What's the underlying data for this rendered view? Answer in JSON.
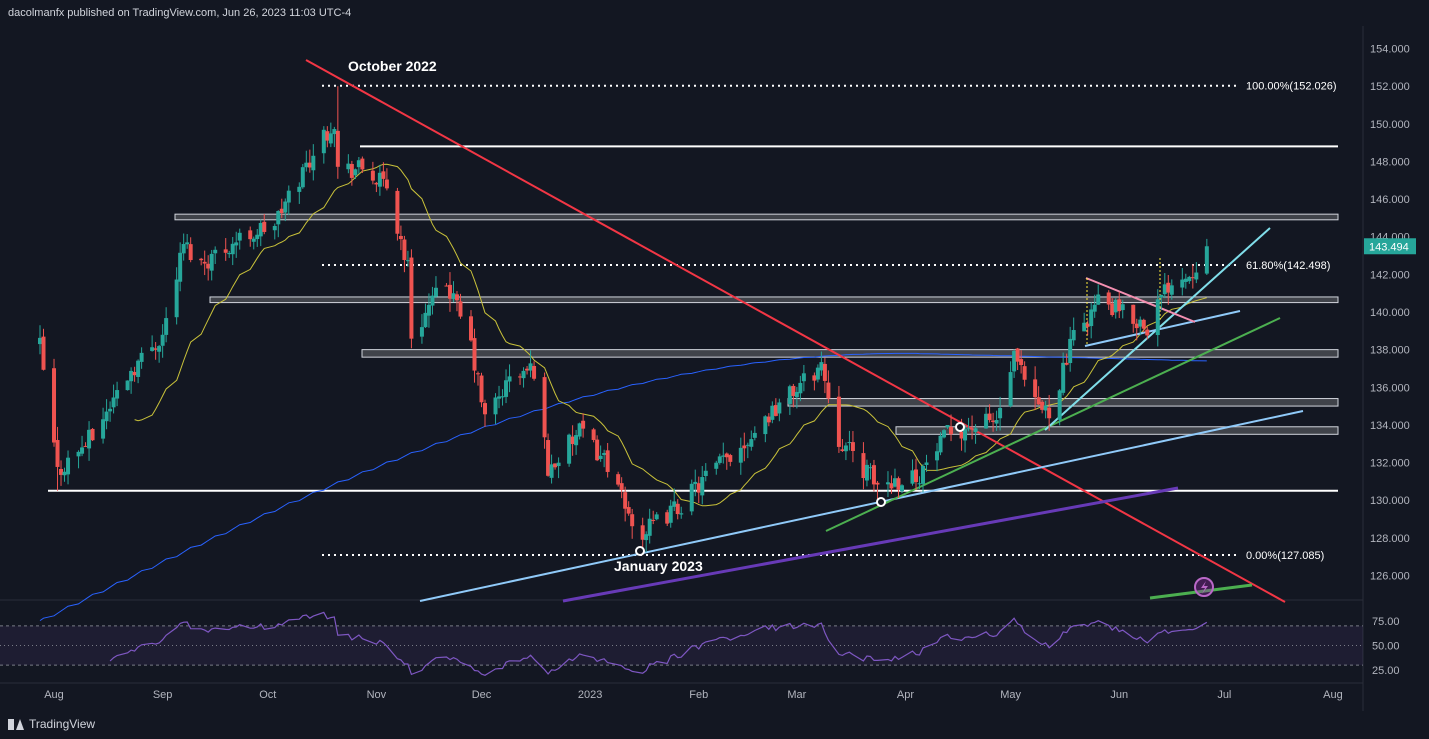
{
  "header": {
    "publisher_text": "dacolmanfx published on TradingView.com, Jun 26, 2023 11:03 UTC-4"
  },
  "footer": {
    "brand": "TradingView"
  },
  "colors": {
    "background": "#131722",
    "up": "#26a69a",
    "down": "#ef5350",
    "sma_short": "#c9c23a",
    "sma_long": "#2962ff",
    "rsi": "#7e57c2",
    "red_trend": "#f23645",
    "light_blue_trend": "#90caf9",
    "cyan_trend": "#80deea",
    "green_trend": "#4caf50",
    "purple_trend": "#673ab7"
  },
  "chart_data": {
    "type": "candlestick",
    "price_axis_ticks": [
      "154.000",
      "152.000",
      "150.000",
      "148.000",
      "146.000",
      "144.000",
      "142.000",
      "140.000",
      "138.000",
      "136.000",
      "134.000",
      "132.000",
      "130.000",
      "128.000",
      "126.000"
    ],
    "price_range": [
      124.8,
      155.2
    ],
    "time_axis_ticks": [
      "Aug",
      "Sep",
      "Oct",
      "Nov",
      "Dec",
      "2023",
      "Feb",
      "Mar",
      "Apr",
      "May",
      "Jun",
      "Jul",
      "Aug"
    ],
    "last_price": "143.494",
    "annotations": {
      "high_label": "October 2022",
      "low_label": "January 2023",
      "fib_100": "100.00%(152.026)",
      "fib_618": "61.80%(142.498)",
      "fib_0": "0.00%(127.085)"
    },
    "fib_levels": [
      {
        "label_key": "fib_100",
        "price": 152.026
      },
      {
        "label_key": "fib_618",
        "price": 142.498
      },
      {
        "label_key": "fib_0",
        "price": 127.085
      }
    ],
    "support_resistance": [
      {
        "kind": "line",
        "price": 148.8,
        "x_from": 360
      },
      {
        "kind": "zone",
        "price_top": 145.2,
        "price_bottom": 144.9,
        "x_from": 175
      },
      {
        "kind": "zone",
        "price_top": 140.8,
        "price_bottom": 140.5,
        "x_from": 210
      },
      {
        "kind": "zone",
        "price_top": 138.0,
        "price_bottom": 137.6,
        "x_from": 362
      },
      {
        "kind": "zone",
        "price_top": 135.4,
        "price_bottom": 135.0,
        "x_from": 788
      },
      {
        "kind": "zone",
        "price_top": 133.9,
        "price_bottom": 133.5,
        "x_from": 896
      },
      {
        "kind": "line",
        "price": 130.5,
        "x_from": 48
      }
    ],
    "rsi": {
      "ticks": [
        "75.00",
        "50.00",
        "25.00"
      ],
      "overbought": 70,
      "oversold": 30
    },
    "key_points": {
      "start": {
        "date": "Jul 28 2022",
        "close": 138.2
      },
      "aug_low": {
        "date": "Aug 2 2022",
        "low": 130.5
      },
      "oct_high": {
        "date": "Oct 21 2022",
        "high": 152.0
      },
      "jan_low": {
        "date": "Jan 16 2023",
        "low": 127.2
      },
      "mar_high": {
        "date": "Mar 8 2023",
        "high": 137.9
      },
      "mar_low": {
        "date": "Mar 24 2023",
        "low": 129.7
      },
      "last": {
        "date": "Jun 26 2023",
        "close": 143.494
      }
    }
  }
}
